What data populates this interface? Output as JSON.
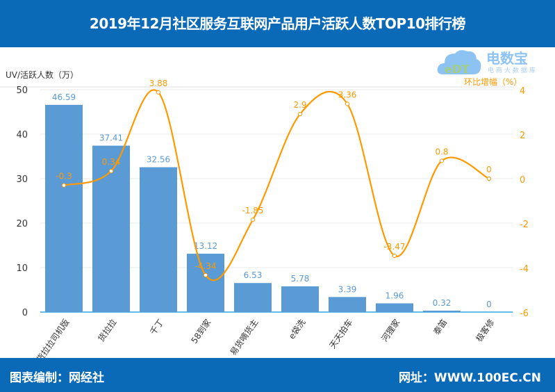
{
  "header": {
    "title": "2019年12月社区服务互联网产品用户活跃人数TOP10排行榜"
  },
  "footer": {
    "credit": "图表编制：网经社",
    "website": "网址：WWW.100EC.CN"
  },
  "logo": {
    "text": "电数宝",
    "subtitle": "电商大数据库",
    "mark": "eDT"
  },
  "colors": {
    "bar": "#5b9bd5",
    "line": "#ff9900",
    "header": "#0a6ab8"
  },
  "chart_data": {
    "type": "bar+line",
    "title": "2019年12月社区服务互联网产品用户活跃人数TOP10排行榜",
    "categories": [
      "货拉拉司机版",
      "货拉拉",
      "千丁",
      "58到家",
      "易货嘀货主",
      "e袋洗",
      "天天拍车",
      "河狸家",
      "泰笛",
      "极客修"
    ],
    "series": [
      {
        "name": "UV/活跃人数（万）",
        "type": "bar",
        "axis": "left",
        "values": [
          46.59,
          37.41,
          32.56,
          13.12,
          6.53,
          5.78,
          3.39,
          1.96,
          0.32,
          0
        ]
      },
      {
        "name": "环比增幅（%）",
        "type": "line",
        "axis": "right",
        "values": [
          -0.3,
          0.34,
          3.88,
          -4.34,
          -1.85,
          2.9,
          3.36,
          -3.47,
          0.8,
          0
        ]
      }
    ],
    "ylabel": "UV/活跃人数（万）",
    "y2label": "环比增幅（%）",
    "ylim": [
      0,
      50
    ],
    "yticks": [
      "0",
      "10",
      "20",
      "30",
      "40",
      "50"
    ],
    "y2lim": [
      -6,
      4
    ],
    "y2ticks": [
      "-6",
      "-4",
      "-2",
      "0",
      "2",
      "4"
    ],
    "grid": true
  }
}
